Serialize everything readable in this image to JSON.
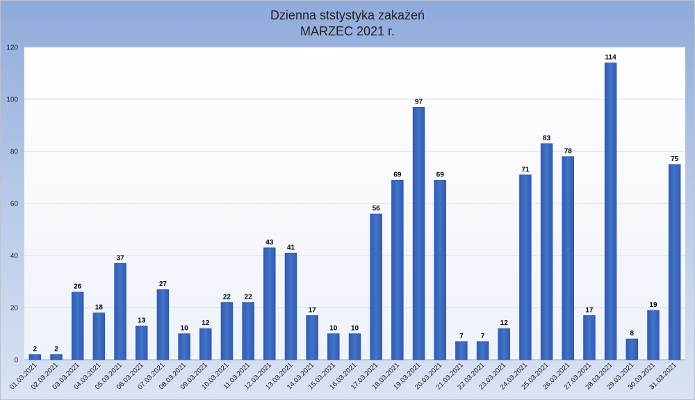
{
  "chart_data": {
    "type": "bar",
    "title": "Dzienna ststystyka zakażeń",
    "subtitle": "MARZEC 2021 r.",
    "xlabel": "",
    "ylabel": "",
    "ylim": [
      0,
      120
    ],
    "yticks": [
      0,
      20,
      40,
      60,
      80,
      100,
      120
    ],
    "grid": true,
    "legend": "none",
    "bar_color": "#4472c4",
    "categories": [
      "01.03.2021",
      "02.03.2021",
      "03.03.2021",
      "04.03.2021",
      "05.03.2021",
      "06.03.2021",
      "07.03.2021",
      "08.03.2021",
      "09.03.2021",
      "10.03.2021",
      "11.03.2021",
      "12.03.2021",
      "13.03.2021",
      "14.03.2021",
      "15.03.2021",
      "16.03.2021",
      "17.03.2021",
      "18.03.2021",
      "19.03.2021",
      "20.03.2021",
      "21.03.2021",
      "22.03.2021",
      "23.03.2021",
      "24.03.2021",
      "25.03.2021",
      "26.03.2021",
      "27.03.2021",
      "28.03.2021",
      "29.03.2021",
      "30.03.2021",
      "31.03.2021"
    ],
    "values": [
      2,
      2,
      26,
      18,
      37,
      13,
      27,
      10,
      12,
      22,
      22,
      43,
      41,
      17,
      10,
      10,
      56,
      69,
      97,
      69,
      7,
      7,
      12,
      71,
      83,
      78,
      17,
      114,
      8,
      19,
      75
    ]
  }
}
